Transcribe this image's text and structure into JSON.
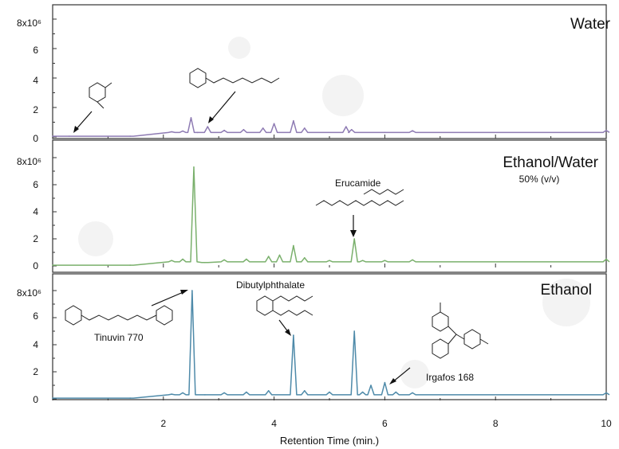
{
  "chart_data": {
    "type": "line",
    "xlabel": "Retention Time (min.)",
    "xlim": [
      0,
      10
    ],
    "x_ticks": [
      "2",
      "4",
      "6",
      "8",
      "10"
    ],
    "y_ticks": [
      "0",
      "2",
      "4",
      "6",
      "8x10⁶"
    ],
    "panels": [
      {
        "title": "Water",
        "subtitle": "",
        "ylim": [
          0,
          9
        ],
        "series": [
          {
            "color": "#8e7bb3",
            "x": [
              0,
              0.3,
              1.4,
              2.15,
              2.35,
              2.5,
              2.62,
              2.8,
              3.1,
              3.45,
              3.8,
              4.0,
              4.35,
              4.55,
              5.3,
              5.4,
              6.0,
              6.5,
              10
            ],
            "y": [
              0.05,
              0.05,
              0.05,
              0.35,
              0.4,
              1.3,
              0.3,
              0.7,
              0.45,
              0.5,
              0.6,
              0.9,
              1.1,
              0.6,
              0.7,
              0.5,
              0.3,
              0.42,
              0.45
            ]
          }
        ],
        "annotations": [
          {
            "label": "",
            "x": 0.45,
            "y": 0.15
          },
          {
            "label": "",
            "x": 2.8,
            "y": 0.7
          }
        ]
      },
      {
        "title": "Ethanol/Water",
        "subtitle": "50% (v/v)",
        "ylim": [
          0,
          9
        ],
        "series": [
          {
            "color": "#7ab06c",
            "x": [
              0,
              1.4,
              2.15,
              2.35,
              2.55,
              2.75,
              3.1,
              3.5,
              3.9,
              4.1,
              4.35,
              4.55,
              5.0,
              5.45,
              5.6,
              6.0,
              6.5,
              10
            ],
            "y": [
              0.05,
              0.05,
              0.4,
              0.5,
              7.3,
              0.25,
              0.45,
              0.5,
              0.7,
              0.8,
              1.5,
              0.6,
              0.4,
              2.0,
              0.4,
              0.4,
              0.45,
              0.5
            ]
          }
        ],
        "annotations": [
          {
            "label": "Erucamide",
            "x": 5.45,
            "y": 2.0
          }
        ]
      },
      {
        "title": "Ethanol",
        "subtitle": "",
        "ylim": [
          0,
          9
        ],
        "series": [
          {
            "color": "#4e8aa9",
            "x": [
              0,
              1.4,
              2.15,
              2.35,
              2.52,
              2.75,
              3.1,
              3.5,
              3.9,
              4.35,
              4.55,
              5.0,
              5.45,
              5.6,
              5.75,
              6.0,
              6.2,
              6.5,
              10
            ],
            "y": [
              0.05,
              0.05,
              0.35,
              0.45,
              8.0,
              0.3,
              0.45,
              0.5,
              0.6,
              4.7,
              0.6,
              0.5,
              5.0,
              0.5,
              1.0,
              1.2,
              0.5,
              0.45,
              0.45
            ]
          }
        ],
        "annotations": [
          {
            "label": "Tinuvin 770",
            "x": 2.52,
            "y": 8.0
          },
          {
            "label": "Dibutylphthalate",
            "x": 4.35,
            "y": 4.7
          },
          {
            "label": "Irgafos 168",
            "x": 6.0,
            "y": 1.2
          }
        ]
      }
    ]
  }
}
